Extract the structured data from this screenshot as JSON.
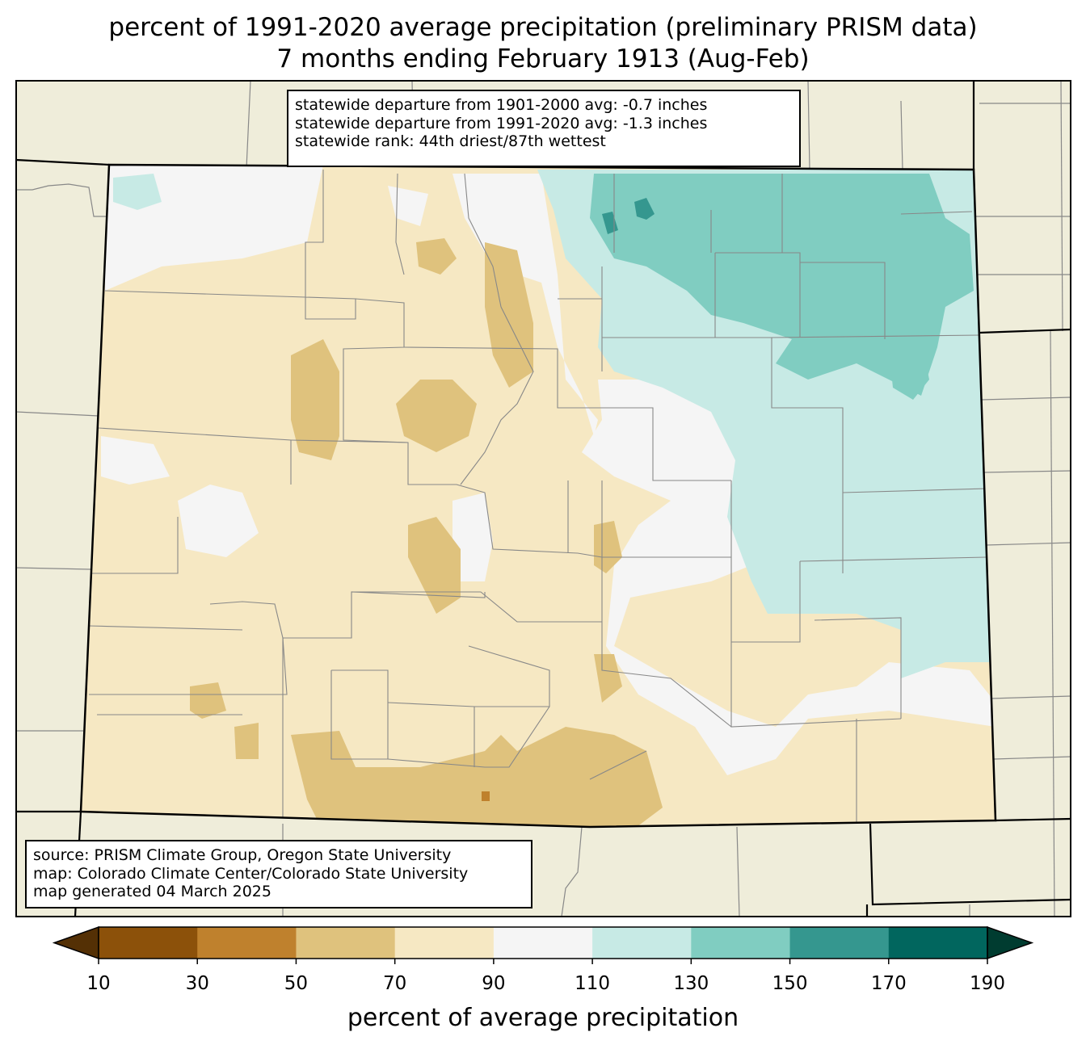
{
  "title": {
    "line1": "percent of 1991-2020 average precipitation (preliminary PRISM data)",
    "line2": "7 months ending February 1913 (Aug-Feb)"
  },
  "stats_box": {
    "line1": "statewide departure from 1901-2000 avg: -0.7 inches",
    "line2": "statewide departure from 1991-2020 avg: -1.3 inches",
    "line3": "statewide rank: 44th driest/87th wettest"
  },
  "source_box": {
    "line1": "source: PRISM Climate Group, Oregon State University",
    "line2": "map: Colorado Climate Center/Colorado State University",
    "line3": "map generated 04 March 2025"
  },
  "colorbar": {
    "label": "percent of average precipitation",
    "ticks": [
      "10",
      "30",
      "50",
      "70",
      "90",
      "110",
      "130",
      "150",
      "170",
      "190"
    ],
    "bins": [
      {
        "range": "<10",
        "color": "#543005"
      },
      {
        "range": "10-30",
        "color": "#8c510a"
      },
      {
        "range": "30-50",
        "color": "#bf812d"
      },
      {
        "range": "50-70",
        "color": "#dfc27d"
      },
      {
        "range": "70-90",
        "color": "#f6e8c3"
      },
      {
        "range": "90-110",
        "color": "#f5f5f5"
      },
      {
        "range": "110-130",
        "color": "#c7eae5"
      },
      {
        "range": "130-150",
        "color": "#80cdc1"
      },
      {
        "range": "150-170",
        "color": "#35978f"
      },
      {
        "range": "170-190",
        "color": "#01665e"
      },
      {
        "range": ">190",
        "color": "#003c30"
      }
    ]
  },
  "colors": {
    "land": "#efedda",
    "state_border": "#000000",
    "county_border": "#888888"
  }
}
